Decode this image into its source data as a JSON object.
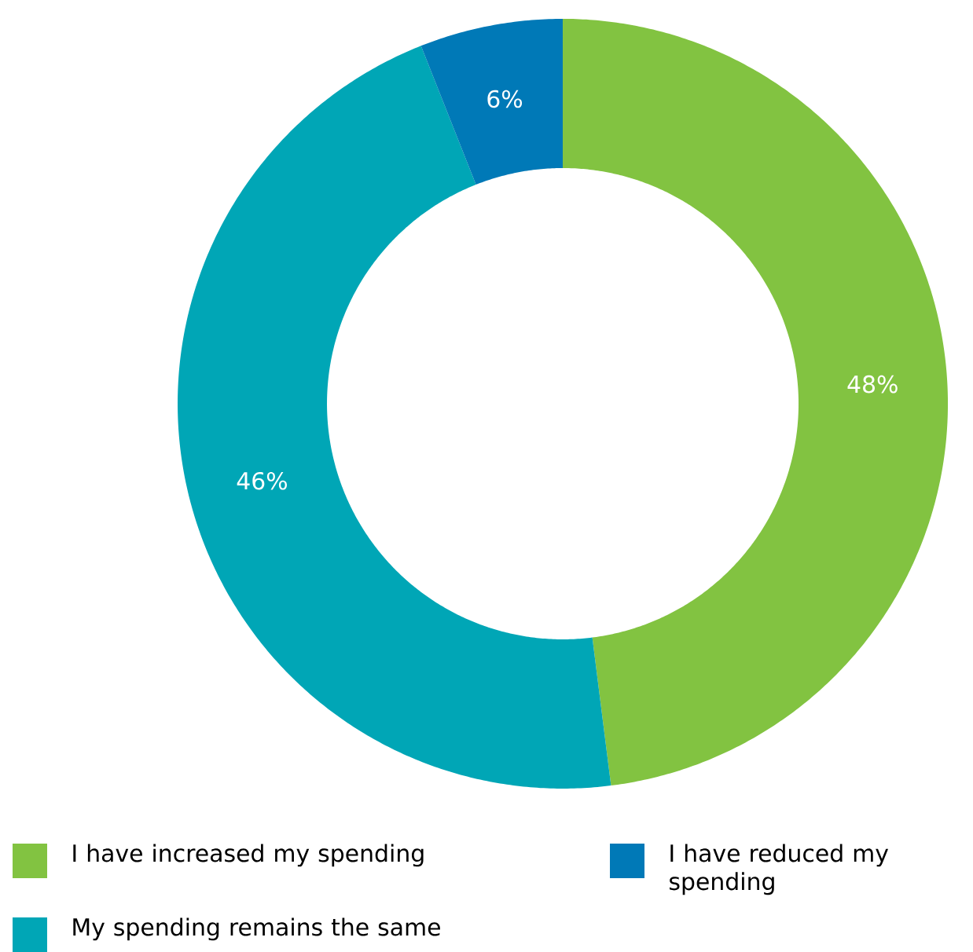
{
  "chart_data": {
    "type": "donut",
    "categories": [
      "I have increased my spending",
      "My spending remains the same",
      "I have reduced my spending"
    ],
    "values": [
      48,
      46,
      6
    ],
    "colors": [
      "#82c341",
      "#00a6b6",
      "#0079b7"
    ],
    "value_labels": [
      "48%",
      "46%",
      "6%"
    ],
    "legend": "bottom"
  }
}
